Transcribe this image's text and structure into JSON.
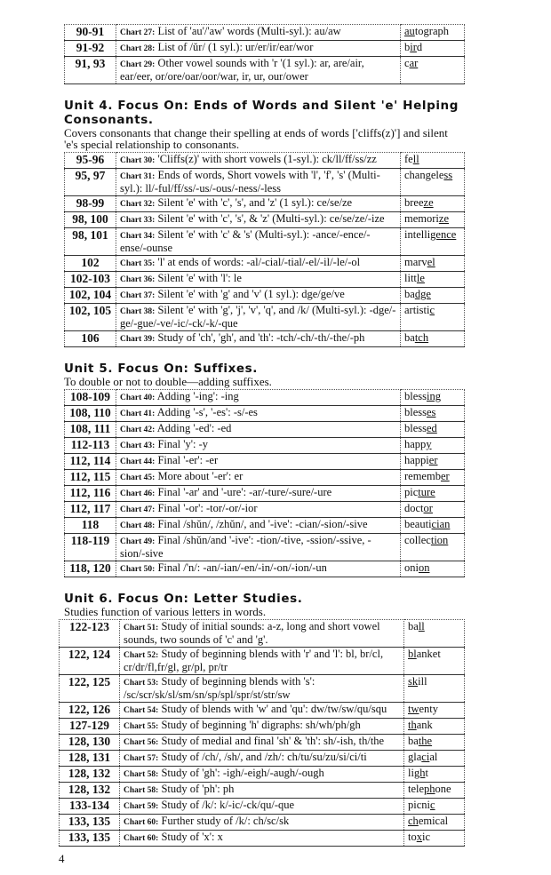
{
  "tables": [
    {
      "rows": [
        {
          "pages": "90-91",
          "label": "Chart 27:",
          "text": "List of 'au'/'aw' words (Multi-syl.):  au/aw",
          "ex": [
            "",
            "au",
            "tograph"
          ]
        },
        {
          "pages": "91-92",
          "label": "Chart 28:",
          "text": "List of /ŭr/ (1 syl.):  ur/er/ir/ear/wor",
          "ex": [
            "b",
            "ir",
            "d"
          ]
        },
        {
          "pages": "91, 93",
          "label": "Chart 29:",
          "text": "Other vowel sounds with 'r '(1 syl.):  ar, are/air, ear/eer, or/ore/oar/oor/war, ir, ur, our/ower",
          "ex": [
            "c",
            "ar",
            ""
          ]
        }
      ]
    },
    {
      "rows": [
        {
          "pages": "95-96",
          "label": "Chart 30:",
          "text": "'Cliffs(z)' with short vowels (1-syl.):  ck/ll/ff/ss/zz",
          "ex": [
            "fe",
            "ll",
            ""
          ]
        },
        {
          "pages": "95, 97",
          "label": "Chart 31:",
          "text": "Ends of words, Short vowels with 'l', 'f', 's' (Multi-syl.):  ll/-ful/ff/ss/-us/-ous/-ness/-less",
          "ex": [
            "changele",
            "ss",
            ""
          ]
        },
        {
          "pages": "98-99",
          "label": "Chart 32:",
          "text": "Silent 'e' with 'c', 's', and 'z' (1 syl.):  ce/se/ze",
          "ex": [
            "bree",
            "ze",
            ""
          ]
        },
        {
          "pages": "98, 100",
          "label": "Chart 33:",
          "text": "Silent 'e' with 'c', 's', & 'z' (Multi-syl.): ce/se/ze/-ize",
          "ex": [
            "memori",
            "ze",
            ""
          ]
        },
        {
          "pages": "98, 101",
          "label": "Chart 34:",
          "text": "Silent 'e' with 'c' & 's' (Multi-syl.):  -ance/-ence/-ense/-ounse",
          "ex": [
            "intelli",
            "gence",
            ""
          ]
        },
        {
          "pages": "102",
          "label": "Chart 35:",
          "text": "'l' at ends of words:  -al/-cial/-tial/-el/-il/-le/-ol",
          "ex": [
            "marv",
            "el",
            ""
          ]
        },
        {
          "pages": "102-103",
          "label": "Chart 36:",
          "text": "Silent 'e' with 'l':  le",
          "ex": [
            "litt",
            "le",
            ""
          ]
        },
        {
          "pages": "102, 104",
          "label": "Chart 37:",
          "text": "Silent 'e' with 'g' and 'v' (1 syl.):  dge/ge/ve",
          "ex": [
            "ba",
            "dge",
            ""
          ]
        },
        {
          "pages": "102, 105",
          "label": "Chart 38:",
          "text": "Silent 'e' with 'g', 'j', 'v', 'q', and /k/ (Multi-syl.): -dge/-ge/-gue/-ve/-ic/-ck/-k/-que",
          "ex": [
            "artisti",
            "c",
            ""
          ]
        },
        {
          "pages": "106",
          "label": "Chart 39:",
          "text": "Study of 'ch', 'gh', and 'th':  -tch/-ch/-th/-the/-ph",
          "ex": [
            "ba",
            "tch",
            ""
          ]
        }
      ]
    },
    {
      "rows": [
        {
          "pages": "108-109",
          "label": "Chart 40:",
          "text": "Adding '-ing':  -ing",
          "ex": [
            "bless",
            "ing",
            ""
          ]
        },
        {
          "pages": "108, 110",
          "label": "Chart 41:",
          "text": "Adding '-s', '-es':  -s/-es",
          "ex": [
            "bless",
            "es",
            ""
          ]
        },
        {
          "pages": "108, 111",
          "label": "Chart 42:",
          "text": "Adding '-ed':  -ed",
          "ex": [
            "bless",
            "ed",
            ""
          ]
        },
        {
          "pages": "112-113",
          "label": "Chart 43:",
          "text": "Final 'y':  -y",
          "ex": [
            "happ",
            "y",
            ""
          ]
        },
        {
          "pages": "112, 114",
          "label": "Chart 44:",
          "text": "Final '-er':  -er",
          "ex": [
            "happi",
            "er",
            ""
          ]
        },
        {
          "pages": "112, 115",
          "label": "Chart 45:",
          "text": "More about '-er':  er",
          "ex": [
            "rememb",
            "er",
            ""
          ]
        },
        {
          "pages": "112, 116",
          "label": "Chart 46:",
          "text": "Final '-ar' and '-ure':  -ar/-ture/-sure/-ure",
          "ex": [
            "pic",
            "ture",
            ""
          ]
        },
        {
          "pages": "112, 117",
          "label": "Chart 47:",
          "text": "Final '-or':  -tor/-or/-ior",
          "ex": [
            "doct",
            "or",
            ""
          ]
        },
        {
          "pages": "118",
          "label": "Chart 48:",
          "text": "Final  /shŭn/, /zhŭn/, and '-ive':  -cian/-sion/-sive",
          "ex": [
            "beauti",
            "cian",
            ""
          ]
        },
        {
          "pages": "118-119",
          "label": "Chart 49:",
          "text": "Final  /shŭn/and '-ive': -tion/-tive, -ssion/-ssive, -sion/-sive",
          "ex": [
            "collec",
            "tion",
            ""
          ]
        },
        {
          "pages": "118, 120",
          "label": "Chart 50:",
          "text": "Final /'n/:  -an/-ian/-en/-in/-on/-ion/-un",
          "ex": [
            "oni",
            "on",
            ""
          ]
        }
      ]
    },
    {
      "rows": [
        {
          "pages": "122-123",
          "label": "Chart 51:",
          "text": "Study of initial sounds:  a-z, long and short vowel sounds, two sounds of 'c' and 'g'.",
          "ex": [
            "ba",
            "ll",
            ""
          ]
        },
        {
          "pages": "122, 124",
          "label": "Chart 52:",
          "text": "Study of beginning blends with 'r' and 'l':  bl, br/cl, cr/dr/fl,fr/gl, gr/pl, pr/tr",
          "ex": [
            "",
            "bl",
            "anket"
          ]
        },
        {
          "pages": "122, 125",
          "label": "Chart 53:",
          "text": "Study of beginning blends with 's': /sc/scr/sk/sl/sm/sn/sp/spl/spr/st/str/sw",
          "ex": [
            "",
            "sk",
            "ill"
          ]
        },
        {
          "pages": "122, 126",
          "label": "Chart 54:",
          "text": "Study of blends with 'w' and 'qu':  dw/tw/sw/qu/squ",
          "ex": [
            "",
            "tw",
            "enty"
          ]
        },
        {
          "pages": "127-129",
          "label": "Chart 55:",
          "text": "Study of beginning 'h' digraphs:  sh/wh/ph/gh",
          "ex": [
            "",
            "th",
            "ank"
          ]
        },
        {
          "pages": "128, 130",
          "label": "Chart 56:",
          "text": "Study of medial and final 'sh' & 'th':  sh/-ish, th/the",
          "ex": [
            "ba",
            "the",
            ""
          ]
        },
        {
          "pages": "128, 131",
          "label": "Chart 57:",
          "text": "Study of /ch/, /sh/, and /zh/:  ch/tu/su/zu/si/ci/ti",
          "ex": [
            "gla",
            "ci",
            "al"
          ]
        },
        {
          "pages": "128, 132",
          "label": "Chart 58:",
          "text": "Study of 'gh':  -igh/-eigh/-augh/-ough",
          "ex": [
            "li",
            "gh",
            "t"
          ]
        },
        {
          "pages": "128, 132",
          "label": "Chart 58:",
          "text": "Study of 'ph':  ph",
          "ex": [
            "tele",
            "ph",
            "one"
          ]
        },
        {
          "pages": "133-134",
          "label": "Chart 59:",
          "text": "Study of /k/:  k/-ic/-ck/qu/-que",
          "ex": [
            "picni",
            "c",
            ""
          ]
        },
        {
          "pages": "133, 135",
          "label": "Chart 60:",
          "text": "Further study of /k/:  ch/sc/sk",
          "ex": [
            "",
            "ch",
            "emical"
          ]
        },
        {
          "pages": "133, 135",
          "label": "Chart 60:",
          "text": "Study of 'x':  x",
          "ex": [
            "to",
            "x",
            "ic"
          ]
        }
      ]
    }
  ],
  "units": [
    {
      "heading": "Unit 4. Focus On: Ends of Words and Silent 'e' Helping Consonants.",
      "desc": "Covers consonants that change their spelling at ends of words ['cliffs(z)'] and silent 'e's special relationship to consonants."
    },
    {
      "heading": "Unit 5. Focus On: Suffixes.",
      "desc": "To double or not to double—adding suffixes."
    },
    {
      "heading": "Unit 6. Focus On: Letter Studies.",
      "desc": "Studies function of various letters in words."
    }
  ],
  "page_number": "4"
}
